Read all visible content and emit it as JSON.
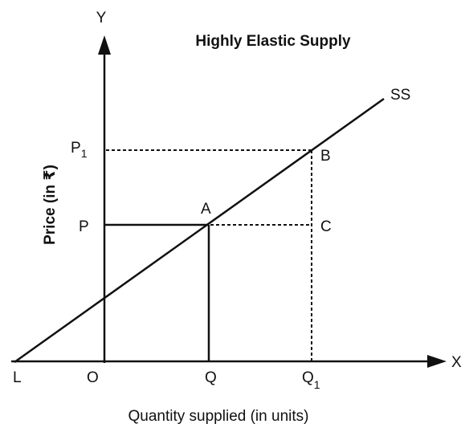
{
  "title": "Highly Elastic Supply",
  "axes": {
    "y": {
      "name": "Y",
      "label": "Price (in ₹)"
    },
    "x": {
      "name": "X",
      "label": "Quantity supplied (in units)"
    }
  },
  "curve": {
    "label": "SS"
  },
  "points": {
    "origin": "O",
    "intercept": "L",
    "A": "A",
    "B": "B",
    "C": "C",
    "P": "P",
    "P1": {
      "base": "P",
      "sub": "1"
    },
    "Q": "Q",
    "Q1": {
      "base": "Q",
      "sub": "1"
    }
  }
}
